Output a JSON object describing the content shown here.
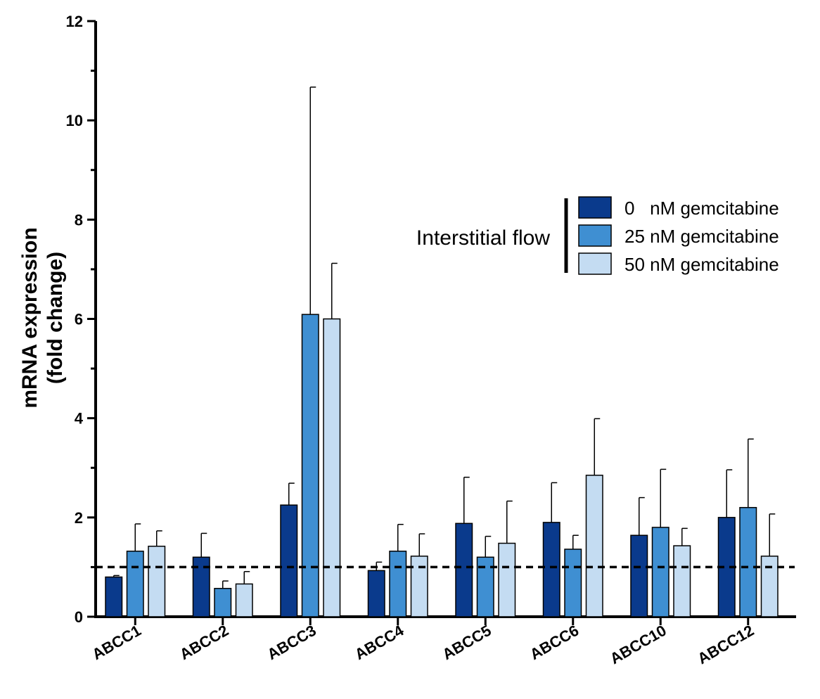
{
  "chart_data": {
    "type": "bar",
    "categories": [
      "ABCC1",
      "ABCC2",
      "ABCC3",
      "ABCC4",
      "ABCC5",
      "ABCC6",
      "ABCC10",
      "ABCC12"
    ],
    "ylabel_line1": "mRNA expression",
    "ylabel_line2": "(fold change)",
    "ylim": [
      0,
      12
    ],
    "yticks": [
      0,
      2,
      4,
      6,
      8,
      10,
      12
    ],
    "reference_line": 1,
    "legend_title": "Interstitial flow",
    "legend_position": "top-right",
    "series": [
      {
        "name": "0   nM gemcitabine",
        "color": "#0a3a8c",
        "values": [
          0.8,
          1.2,
          2.25,
          0.93,
          1.88,
          1.9,
          1.64,
          2.0
        ],
        "errors": [
          0.03,
          0.48,
          0.44,
          0.17,
          0.93,
          0.8,
          0.76,
          0.96
        ]
      },
      {
        "name": "25 nM gemcitabine",
        "color": "#3f8fd2",
        "values": [
          1.32,
          0.57,
          6.09,
          1.32,
          1.2,
          1.36,
          1.8,
          2.2
        ],
        "errors": [
          0.55,
          0.15,
          4.58,
          0.54,
          0.42,
          0.28,
          1.17,
          1.38
        ]
      },
      {
        "name": "50 nM gemcitabine",
        "color": "#c4dcf2",
        "values": [
          1.42,
          0.66,
          6.0,
          1.22,
          1.48,
          2.85,
          1.43,
          1.22
        ],
        "errors": [
          0.31,
          0.25,
          1.12,
          0.45,
          0.85,
          1.14,
          0.35,
          0.85
        ]
      }
    ]
  }
}
